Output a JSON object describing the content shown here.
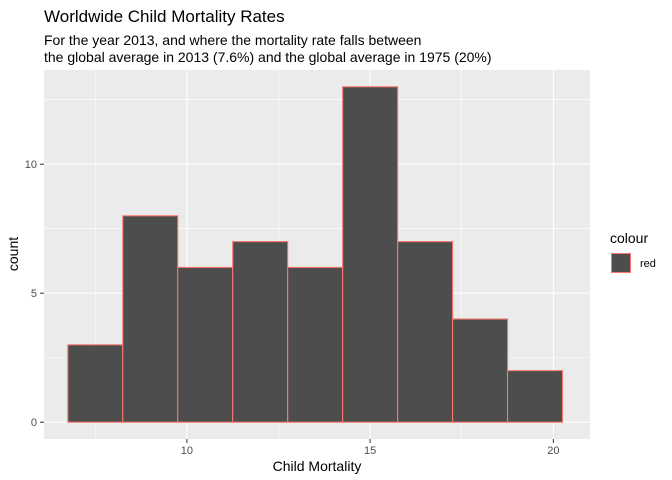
{
  "chart_data": {
    "type": "bar",
    "title": "Worldwide Child Mortality Rates",
    "subtitle_lines": [
      "For the year 2013, and where the mortality rate falls between",
      "the global average in 2013 (7.6%) and the global average in 1975 (20%)"
    ],
    "xlabel": "Child Mortality",
    "ylabel": "count",
    "bins": [
      {
        "x0": 6.75,
        "x1": 8.25,
        "count": 3
      },
      {
        "x0": 8.25,
        "x1": 9.75,
        "count": 8
      },
      {
        "x0": 9.75,
        "x1": 11.25,
        "count": 6
      },
      {
        "x0": 11.25,
        "x1": 12.75,
        "count": 7
      },
      {
        "x0": 12.75,
        "x1": 14.25,
        "count": 6
      },
      {
        "x0": 14.25,
        "x1": 15.75,
        "count": 13
      },
      {
        "x0": 15.75,
        "x1": 17.25,
        "count": 7
      },
      {
        "x0": 17.25,
        "x1": 18.75,
        "count": 4
      },
      {
        "x0": 18.75,
        "x1": 20.25,
        "count": 2
      }
    ],
    "xlim": [
      6.1,
      21.0
    ],
    "ylim": [
      -0.65,
      13.65
    ],
    "x_ticks": [
      10,
      15,
      20
    ],
    "y_ticks": [
      0,
      5,
      10
    ],
    "grid": true,
    "legend": {
      "title": "colour",
      "entries": [
        "red"
      ],
      "position": "right"
    },
    "colors": {
      "panel": "#ebebeb",
      "grid": "#ffffff",
      "bar_fill": "#4d4d4d",
      "bar_outline": "#f8766d",
      "tick": "#333333"
    }
  }
}
